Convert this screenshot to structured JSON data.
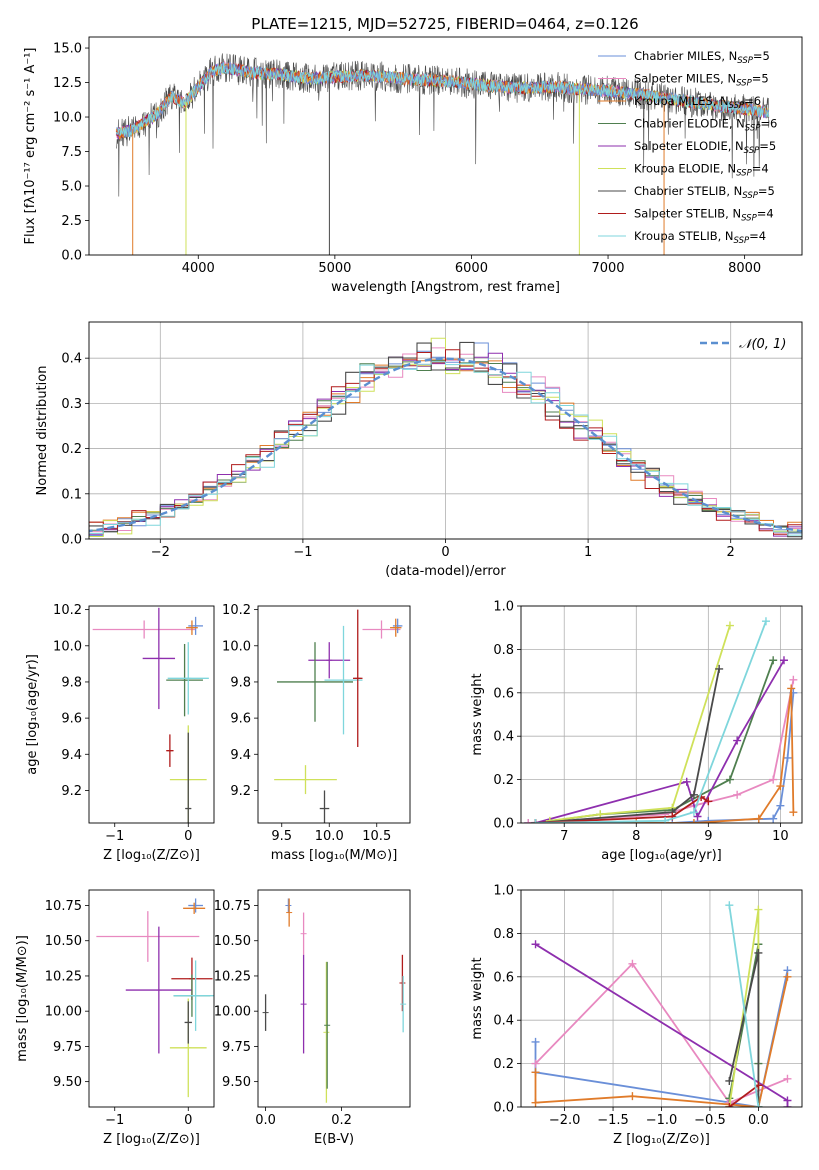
{
  "figure_title": "PLATE=1215, MJD=52725, FIBERID=0464, z=0.126",
  "colors": {
    "chabrier_miles": "#6a8fd8",
    "salpeter_miles": "#e889c0",
    "kroupa_miles": "#e07b2a",
    "chabrier_elodie": "#4f7f4f",
    "salpeter_elodie": "#8e2fae",
    "kroupa_elodie": "#cfe15a",
    "chabrier_stelib": "#4a4a4a",
    "salpeter_stelib": "#b01c1c",
    "kroupa_stelib": "#7fd6dc",
    "grid": "#b0b0b0",
    "normal_curve": "#5b8fd0"
  },
  "chart_data": [
    {
      "id": "spectrum",
      "type": "line",
      "title": "PLATE=1215, MJD=52725, FIBERID=0464, z=0.126",
      "xlabel": "wavelength [Angstrom, rest frame]",
      "ylabel": "Flux [fλ10⁻¹⁷ erg cm⁻² s⁻¹ A⁻¹]",
      "xlim": [
        3200,
        8420
      ],
      "ylim": [
        0,
        15.8
      ],
      "xticks": [
        "4000",
        "5000",
        "6000",
        "7000",
        "8000"
      ],
      "xtick_values": [
        4000,
        5000,
        6000,
        7000,
        8000
      ],
      "yticks": [
        "0.0",
        "2.5",
        "5.0",
        "7.5",
        "10.0",
        "12.5",
        "15.0"
      ],
      "ytick_values": [
        0,
        2.5,
        5,
        7.5,
        10,
        12.5,
        15
      ],
      "legend_position": "top-right",
      "data_x_range": [
        3400,
        8180
      ],
      "envelope": {
        "x": [
          3400,
          3500,
          3600,
          3700,
          3800,
          3900,
          4000,
          4100,
          4200,
          4300,
          4400,
          4600,
          4800,
          5000,
          5200,
          5400,
          5600,
          5800,
          6000,
          6200,
          6400,
          6600,
          6800,
          7000,
          7200,
          7400,
          7600,
          7800,
          8000,
          8180
        ],
        "y": [
          8.8,
          9.0,
          9.6,
          10.2,
          11.5,
          11.0,
          12.2,
          13.3,
          13.6,
          13.4,
          13.2,
          13.1,
          12.8,
          12.9,
          13.0,
          12.9,
          12.7,
          12.6,
          12.4,
          12.2,
          12.1,
          12.2,
          12.0,
          11.9,
          11.7,
          11.4,
          11.1,
          10.8,
          10.6,
          10.3
        ]
      },
      "series": [
        {
          "name": "Chabrier MILES, NSSP=5",
          "color_key": "chabrier_miles"
        },
        {
          "name": "Salpeter MILES, NSSP=5",
          "color_key": "salpeter_miles"
        },
        {
          "name": "Kroupa MILES, NSSP=6",
          "color_key": "kroupa_miles"
        },
        {
          "name": "Chabrier ELODIE, NSSP=6",
          "color_key": "chabrier_elodie"
        },
        {
          "name": "Salpeter ELODIE, NSSP=5",
          "color_key": "salpeter_elodie"
        },
        {
          "name": "Kroupa ELODIE, NSSP=4",
          "color_key": "kroupa_elodie"
        },
        {
          "name": "Chabrier STELIB, NSSP=5",
          "color_key": "chabrier_stelib"
        },
        {
          "name": "Salpeter STELIB, NSSP=4",
          "color_key": "salpeter_stelib"
        },
        {
          "name": "Kroupa STELIB, NSSP=4",
          "color_key": "kroupa_stelib"
        }
      ],
      "legend_labels": [
        {
          "main": "Chabrier MILES, N",
          "sub": "SSP",
          "tail": "=5"
        },
        {
          "main": "Salpeter MILES, N",
          "sub": "SSP",
          "tail": "=5"
        },
        {
          "main": "Kroupa MILES, N",
          "sub": "SSP",
          "tail": "=6"
        },
        {
          "main": "Chabrier ELODIE, N",
          "sub": "SSP",
          "tail": "=6"
        },
        {
          "main": "Salpeter ELODIE, N",
          "sub": "SSP",
          "tail": "=5"
        },
        {
          "main": "Kroupa ELODIE, N",
          "sub": "SSP",
          "tail": "=4"
        },
        {
          "main": "Chabrier STELIB, N",
          "sub": "SSP",
          "tail": "=5"
        },
        {
          "main": "Salpeter STELIB, N",
          "sub": "SSP",
          "tail": "=4"
        },
        {
          "main": "Kroupa STELIB, N",
          "sub": "SSP",
          "tail": "=4"
        }
      ],
      "drops": [
        {
          "x": 3520,
          "color_key": "kroupa_miles"
        },
        {
          "x": 3910,
          "color_key": "kroupa_elodie"
        },
        {
          "x": 4960,
          "color_key": "chabrier_stelib"
        },
        {
          "x": 6790,
          "color_key": "kroupa_elodie"
        },
        {
          "x": 7410,
          "color_key": "kroupa_miles"
        }
      ]
    },
    {
      "id": "residuals",
      "type": "area",
      "xlabel": "(data-model)/error",
      "ylabel": "Normed distribution",
      "xlim": [
        -2.5,
        2.5
      ],
      "ylim": [
        0,
        0.48
      ],
      "xticks": [
        "−2",
        "−1",
        "0",
        "1",
        "2"
      ],
      "xtick_values": [
        -2,
        -1,
        0,
        1,
        2
      ],
      "yticks": [
        "0.0",
        "0.1",
        "0.2",
        "0.3",
        "0.4"
      ],
      "ytick_values": [
        0,
        0.1,
        0.2,
        0.3,
        0.4
      ],
      "grid": true,
      "bin_width": 0.1,
      "legend": {
        "label": "𝒩(0, 1)",
        "position": "top-right"
      },
      "normal_curve": {
        "mean": 0,
        "sigma": 1,
        "style": "dashed"
      }
    },
    {
      "id": "age_vs_Z",
      "type": "scatter",
      "xlabel": "Z [log₁₀(Z/Z⊙)]",
      "ylabel": "age  [log₁₀(age/yr)]",
      "xlim": [
        -1.35,
        0.35
      ],
      "ylim": [
        9.02,
        10.22
      ],
      "xticks": [
        "−1",
        "0"
      ],
      "xtick_values": [
        -1,
        0
      ],
      "yticks": [
        "9.2",
        "9.4",
        "9.6",
        "9.8",
        "10.0",
        "10.2"
      ],
      "ytick_values": [
        9.2,
        9.4,
        9.6,
        9.8,
        10.0,
        10.2
      ],
      "points": [
        {
          "color_key": "salpeter_miles",
          "x": -0.6,
          "y": 10.09,
          "xerr": 0.7,
          "yerr": 0.05
        },
        {
          "color_key": "chabrier_miles",
          "x": 0.1,
          "y": 10.11,
          "xerr": 0.1,
          "yerr": 0.05
        },
        {
          "color_key": "kroupa_miles",
          "x": 0.05,
          "y": 10.1,
          "xerr": 0.08,
          "yerr": 0.04
        },
        {
          "color_key": "salpeter_elodie",
          "x": -0.4,
          "y": 9.93,
          "xerr": 0.22,
          "yerr": 0.28
        },
        {
          "color_key": "chabrier_elodie",
          "x": -0.05,
          "y": 9.81,
          "xerr": 0.25,
          "yerr": 0.2
        },
        {
          "color_key": "kroupa_stelib",
          "x": 0.0,
          "y": 9.82,
          "xerr": 0.28,
          "yerr": 0.2
        },
        {
          "color_key": "salpeter_stelib",
          "x": -0.25,
          "y": 9.42,
          "xerr": 0.05,
          "yerr": 0.09
        },
        {
          "color_key": "kroupa_elodie",
          "x": 0.0,
          "y": 9.26,
          "xerr": 0.25,
          "yerr": 0.3
        },
        {
          "color_key": "chabrier_stelib",
          "x": 0.0,
          "y": 9.1,
          "xerr": 0.04,
          "yerr": 0.42
        }
      ]
    },
    {
      "id": "age_vs_mass",
      "type": "scatter",
      "xlabel": "mass [log₁₀(M/M⊙)]",
      "ylabel": "",
      "xlim": [
        9.25,
        10.85
      ],
      "ylim": [
        9.02,
        10.22
      ],
      "xticks": [
        "9.5",
        "10.0",
        "10.5"
      ],
      "xtick_values": [
        9.5,
        10.0,
        10.5
      ],
      "yticks": [
        "9.2",
        "9.4",
        "9.6",
        "9.8",
        "10.0",
        "10.2"
      ],
      "ytick_values": [
        9.2,
        9.4,
        9.6,
        9.8,
        10.0,
        10.2
      ],
      "points": [
        {
          "color_key": "salpeter_miles",
          "x": 10.55,
          "y": 10.09,
          "xerr": 0.2,
          "yerr": 0.05
        },
        {
          "color_key": "chabrier_miles",
          "x": 10.72,
          "y": 10.11,
          "xerr": 0.05,
          "yerr": 0.04
        },
        {
          "color_key": "kroupa_miles",
          "x": 10.7,
          "y": 10.1,
          "xerr": 0.06,
          "yerr": 0.05
        },
        {
          "color_key": "salpeter_elodie",
          "x": 10.0,
          "y": 9.92,
          "xerr": 0.22,
          "yerr": 0.1
        },
        {
          "color_key": "chabrier_elodie",
          "x": 9.85,
          "y": 9.8,
          "xerr": 0.4,
          "yerr": 0.22
        },
        {
          "color_key": "kroupa_stelib",
          "x": 10.15,
          "y": 9.81,
          "xerr": 0.2,
          "yerr": 0.3
        },
        {
          "color_key": "salpeter_stelib",
          "x": 10.3,
          "y": 9.82,
          "xerr": 0.05,
          "yerr": 0.38
        },
        {
          "color_key": "kroupa_elodie",
          "x": 9.75,
          "y": 9.26,
          "xerr": 0.33,
          "yerr": 0.08
        },
        {
          "color_key": "chabrier_stelib",
          "x": 9.95,
          "y": 9.1,
          "xerr": 0.05,
          "yerr": 0.1
        }
      ]
    },
    {
      "id": "weight_vs_age",
      "type": "line",
      "xlabel": "age  [log₁₀(age/yr)]",
      "ylabel": "mass weight",
      "xlim": [
        6.4,
        10.3
      ],
      "ylim": [
        0,
        1.0
      ],
      "xticks": [
        "7",
        "8",
        "9",
        "10"
      ],
      "xtick_values": [
        7,
        8,
        9,
        10
      ],
      "yticks": [
        "0.0",
        "0.2",
        "0.4",
        "0.6",
        "0.8",
        "1.0"
      ],
      "ytick_values": [
        0,
        0.2,
        0.4,
        0.6,
        0.8,
        1.0
      ],
      "grid": true,
      "series": [
        {
          "color_key": "chabrier_miles",
          "x": [
            6.5,
            8.5,
            9.0,
            9.9,
            10.0,
            10.1,
            10.18
          ],
          "y": [
            0.0,
            0.0,
            0.01,
            0.02,
            0.08,
            0.3,
            0.6
          ]
        },
        {
          "color_key": "salpeter_miles",
          "x": [
            6.5,
            8.4,
            8.8,
            9.4,
            9.9,
            10.18
          ],
          "y": [
            0.0,
            0.04,
            0.08,
            0.13,
            0.2,
            0.66
          ]
        },
        {
          "color_key": "kroupa_miles",
          "x": [
            6.6,
            8.0,
            8.8,
            9.7,
            10.0,
            10.15,
            10.18
          ],
          "y": [
            0.0,
            0.0,
            0.0,
            0.02,
            0.17,
            0.62,
            0.05
          ]
        },
        {
          "color_key": "chabrier_elodie",
          "x": [
            6.6,
            7.5,
            8.5,
            9.3,
            9.9
          ],
          "y": [
            0.0,
            0.04,
            0.06,
            0.2,
            0.75
          ]
        },
        {
          "color_key": "salpeter_elodie",
          "x": [
            6.6,
            8.7,
            8.85,
            9.4,
            10.05
          ],
          "y": [
            0.0,
            0.19,
            0.03,
            0.38,
            0.75
          ]
        },
        {
          "color_key": "kroupa_elodie",
          "x": [
            6.8,
            7.5,
            8.5,
            9.3
          ],
          "y": [
            0.01,
            0.04,
            0.07,
            0.91
          ]
        },
        {
          "color_key": "chabrier_stelib",
          "x": [
            6.6,
            8.5,
            8.8,
            9.15
          ],
          "y": [
            0.0,
            0.05,
            0.13,
            0.71
          ]
        },
        {
          "color_key": "salpeter_stelib",
          "x": [
            6.6,
            8.5,
            8.9,
            9.0
          ],
          "y": [
            0.0,
            0.03,
            0.12,
            0.1
          ]
        },
        {
          "color_key": "kroupa_stelib",
          "x": [
            6.6,
            8.4,
            8.8,
            9.8
          ],
          "y": [
            0.0,
            0.01,
            0.05,
            0.93
          ]
        }
      ]
    },
    {
      "id": "mass_vs_Z",
      "type": "scatter",
      "xlabel": "Z [log₁₀(Z/Z⊙)]",
      "ylabel": "mass [log₁₀(M/M⊙)]",
      "xlim": [
        -1.35,
        0.35
      ],
      "ylim": [
        9.32,
        10.86
      ],
      "xticks": [
        "−1",
        "0"
      ],
      "xtick_values": [
        -1,
        0
      ],
      "yticks": [
        "9.50",
        "9.75",
        "10.00",
        "10.25",
        "10.50",
        "10.75"
      ],
      "ytick_values": [
        9.5,
        9.75,
        10.0,
        10.25,
        10.5,
        10.75
      ],
      "points": [
        {
          "color_key": "salpeter_miles",
          "x": -0.55,
          "y": 10.53,
          "xerr": 0.7,
          "yerr": 0.18
        },
        {
          "color_key": "chabrier_miles",
          "x": 0.1,
          "y": 10.75,
          "xerr": 0.1,
          "yerr": 0.05
        },
        {
          "color_key": "kroupa_miles",
          "x": 0.08,
          "y": 10.73,
          "xerr": 0.15,
          "yerr": 0.04
        },
        {
          "color_key": "salpeter_elodie",
          "x": -0.4,
          "y": 10.15,
          "xerr": 0.45,
          "yerr": 0.45
        },
        {
          "color_key": "salpeter_stelib",
          "x": 0.05,
          "y": 10.23,
          "xerr": 0.28,
          "yerr": 0.15
        },
        {
          "color_key": "chabrier_elodie",
          "x": 0.05,
          "y": 10.11,
          "xerr": 0.25,
          "yerr": 0.15
        },
        {
          "color_key": "kroupa_stelib",
          "x": 0.1,
          "y": 10.11,
          "xerr": 0.3,
          "yerr": 0.25
        },
        {
          "color_key": "kroupa_elodie",
          "x": 0.0,
          "y": 9.74,
          "xerr": 0.25,
          "yerr": 0.35
        },
        {
          "color_key": "chabrier_stelib",
          "x": 0.0,
          "y": 9.92,
          "xerr": 0.05,
          "yerr": 0.15
        }
      ]
    },
    {
      "id": "mass_vs_ebv",
      "type": "scatter",
      "xlabel": "E(B-V)",
      "ylabel": "",
      "xlim": [
        -0.02,
        0.38
      ],
      "ylim": [
        9.32,
        10.86
      ],
      "xticks": [
        "0.0",
        "0.2"
      ],
      "xtick_values": [
        0,
        0.2
      ],
      "yticks": [
        "9.50",
        "9.75",
        "10.00",
        "10.25",
        "10.50",
        "10.75"
      ],
      "ytick_values": [
        9.5,
        9.75,
        10.0,
        10.25,
        10.5,
        10.75
      ],
      "points": [
        {
          "color_key": "chabrier_stelib",
          "x": 0.0,
          "y": 9.99,
          "xerr": 0,
          "yerr": 0.13
        },
        {
          "color_key": "chabrier_miles",
          "x": 0.06,
          "y": 10.75,
          "xerr": 0,
          "yerr": 0.05
        },
        {
          "color_key": "kroupa_miles",
          "x": 0.062,
          "y": 10.7,
          "xerr": 0,
          "yerr": 0.1
        },
        {
          "color_key": "salpeter_miles",
          "x": 0.1,
          "y": 10.55,
          "xerr": 0,
          "yerr": 0.15
        },
        {
          "color_key": "salpeter_elodie",
          "x": 0.1,
          "y": 10.05,
          "xerr": 0,
          "yerr": 0.35
        },
        {
          "color_key": "kroupa_elodie",
          "x": 0.16,
          "y": 9.85,
          "xerr": 0,
          "yerr": 0.5
        },
        {
          "color_key": "chabrier_elodie",
          "x": 0.162,
          "y": 9.9,
          "xerr": 0,
          "yerr": 0.45
        },
        {
          "color_key": "salpeter_stelib",
          "x": 0.36,
          "y": 10.2,
          "xerr": 0,
          "yerr": 0.2
        },
        {
          "color_key": "kroupa_stelib",
          "x": 0.362,
          "y": 10.05,
          "xerr": 0,
          "yerr": 0.2
        }
      ]
    },
    {
      "id": "weight_vs_Z",
      "type": "line",
      "xlabel": "Z [log₁₀(Z/Z⊙)]",
      "ylabel": "mass weight",
      "xlim": [
        -2.45,
        0.45
      ],
      "ylim": [
        0,
        1.0
      ],
      "xticks": [
        "−2.0",
        "−1.5",
        "−1.0",
        "−0.5",
        "0.0"
      ],
      "xtick_values": [
        -2.0,
        -1.5,
        -1.0,
        -0.5,
        0.0
      ],
      "yticks": [
        "0.0",
        "0.2",
        "0.4",
        "0.6",
        "0.8",
        "1.0"
      ],
      "ytick_values": [
        0,
        0.2,
        0.4,
        0.6,
        0.8,
        1.0
      ],
      "grid": true,
      "series": [
        {
          "color_key": "chabrier_miles",
          "x": [
            -2.3,
            -2.3,
            0.0,
            0.3
          ],
          "y": [
            0.3,
            0.16,
            0.0,
            0.63
          ]
        },
        {
          "color_key": "salpeter_miles",
          "x": [
            -2.3,
            -1.3,
            -0.3,
            0.3
          ],
          "y": [
            0.2,
            0.66,
            0.02,
            0.13
          ]
        },
        {
          "color_key": "kroupa_miles",
          "x": [
            -2.3,
            -2.3,
            -1.3,
            0.0,
            0.3
          ],
          "y": [
            0.16,
            0.02,
            0.05,
            0.0,
            0.6
          ]
        },
        {
          "color_key": "chabrier_elodie",
          "x": [
            -0.3,
            0.0,
            0.0
          ],
          "y": [
            0.04,
            0.75,
            0.2
          ]
        },
        {
          "color_key": "salpeter_elodie",
          "x": [
            -2.3,
            0.3,
            0.3
          ],
          "y": [
            0.75,
            0.03,
            0.0
          ]
        },
        {
          "color_key": "kroupa_elodie",
          "x": [
            -0.3,
            0.0,
            0.0
          ],
          "y": [
            0.0,
            0.91,
            0.0
          ]
        },
        {
          "color_key": "chabrier_stelib",
          "x": [
            -0.3,
            0.0,
            0.0
          ],
          "y": [
            0.12,
            0.71,
            0.0
          ]
        },
        {
          "color_key": "salpeter_stelib",
          "x": [
            -0.3,
            0.0
          ],
          "y": [
            0.0,
            0.1
          ]
        },
        {
          "color_key": "kroupa_stelib",
          "x": [
            -0.3,
            0.0
          ],
          "y": [
            0.93,
            0.0
          ]
        }
      ]
    }
  ]
}
